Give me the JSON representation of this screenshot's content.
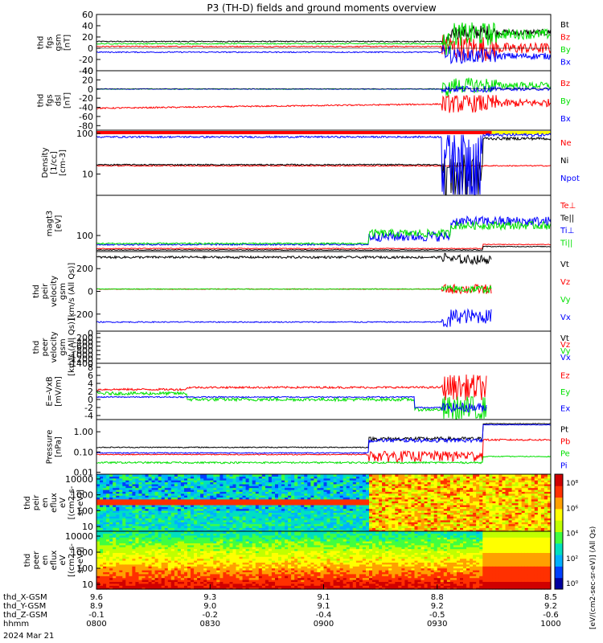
{
  "title": "P3 (TH-D) fields and ground moments overview",
  "colors": {
    "black": "#000000",
    "red": "#ff0000",
    "green": "#00e000",
    "blue": "#0000ff",
    "yellow": "#ffff00"
  },
  "bottom_axis": {
    "rows": [
      {
        "label": "thd_X-GSM",
        "values": [
          "9.6",
          "9.3",
          "9.1",
          "8.8",
          "8.5"
        ]
      },
      {
        "label": "thd_Y-GSM",
        "values": [
          "8.9",
          "9.0",
          "9.1",
          "9.2",
          "9.2"
        ]
      },
      {
        "label": "thd_Z-GSM",
        "values": [
          "-0.1",
          "-0.2",
          "-0.4",
          "-0.5",
          "-0.6"
        ]
      },
      {
        "label": "hhmm",
        "values": [
          "0800",
          "0830",
          "0900",
          "0930",
          "1000"
        ]
      }
    ],
    "date": "2024 Mar 21"
  },
  "colorbar": {
    "ticks": [
      "10⁸",
      "10⁶",
      "10⁴",
      "10²",
      "10⁰"
    ],
    "label": "[eV/(cm2-sec-sr-eV)] (All Qs)"
  },
  "chart_data": [
    {
      "type": "line",
      "ylabel": [
        "thd",
        "fgs",
        "gsm",
        "[nT]"
      ],
      "ylim": [
        -40,
        60
      ],
      "ticks": [
        "60",
        "40",
        "20",
        "0",
        "-20",
        "-40"
      ],
      "tick_values": [
        60,
        40,
        20,
        0,
        -20,
        -40
      ],
      "series": [
        {
          "name": "Bt",
          "color": "black"
        },
        {
          "name": "Bz",
          "color": "red"
        },
        {
          "name": "By",
          "color": "green"
        },
        {
          "name": "Bx",
          "color": "blue"
        }
      ]
    },
    {
      "type": "line",
      "ylabel": [
        "thd",
        "fgs",
        "dsl",
        "[nT]"
      ],
      "ylim": [
        -90,
        40
      ],
      "ticks": [
        "40",
        "20",
        "0",
        "-20",
        "-40",
        "-60",
        "-80"
      ],
      "tick_values": [
        40,
        20,
        0,
        -20,
        -40,
        -60,
        -80
      ],
      "series": [
        {
          "name": "Bz",
          "color": "red"
        },
        {
          "name": "By",
          "color": "green"
        },
        {
          "name": "Bx",
          "color": "blue"
        }
      ]
    },
    {
      "type": "line",
      "ylabel": [
        "Density",
        "[1/cc]",
        "[cm-3]"
      ],
      "scale": "log",
      "ylim": [
        3,
        120
      ],
      "ticks": [
        "100",
        "10"
      ],
      "tick_values": [
        100,
        10
      ],
      "series": [
        {
          "name": "Ne",
          "color": "red"
        },
        {
          "name": "Ni",
          "color": "black"
        },
        {
          "name": "Npot",
          "color": "blue"
        }
      ]
    },
    {
      "type": "line",
      "ylabel": [
        "magt3",
        "[eV]"
      ],
      "ylim": [
        20,
        300
      ],
      "ticks": [
        "100"
      ],
      "tick_values": [
        100
      ],
      "series": [
        {
          "name": "Te⊥",
          "color": "red"
        },
        {
          "name": "Te||",
          "color": "black"
        },
        {
          "name": "Ti⊥",
          "color": "blue"
        },
        {
          "name": "Ti||",
          "color": "green"
        }
      ]
    },
    {
      "type": "line",
      "ylabel": [
        "thd",
        "peir",
        "velocity",
        "gsm",
        "[km/s (All Qs)]"
      ],
      "ylim": [
        -350,
        350
      ],
      "ticks": [
        "200",
        "0",
        "-200"
      ],
      "tick_values": [
        200,
        0,
        -200
      ],
      "series": [
        {
          "name": "Vt",
          "color": "black"
        },
        {
          "name": "Vz",
          "color": "red"
        },
        {
          "name": "Vy",
          "color": "green"
        },
        {
          "name": "Vx",
          "color": "blue"
        }
      ]
    },
    {
      "type": "line",
      "ylabel": [
        "thd",
        "peer",
        "velocity",
        "gsm",
        "[km/s (All Qs)]"
      ],
      "ylim": [
        -1400,
        100
      ],
      "ticks": [
        "0",
        "-200",
        "-400",
        "-600",
        "-800",
        "-1000",
        "-1200",
        "-1400"
      ],
      "tick_values": [
        0,
        -200,
        -400,
        -600,
        -800,
        -1000,
        -1200,
        -1400
      ],
      "series": [
        {
          "name": "Vt",
          "color": "black"
        },
        {
          "name": "Vz",
          "color": "red"
        },
        {
          "name": "Vy",
          "color": "green"
        },
        {
          "name": "Vx",
          "color": "blue"
        }
      ]
    },
    {
      "type": "line",
      "ylabel": [
        "E=-VxB",
        "[mV/m]"
      ],
      "ylim": [
        -5,
        9
      ],
      "ticks": [
        "8",
        "6",
        "4",
        "2",
        "0",
        "-2",
        "-4"
      ],
      "tick_values": [
        8,
        6,
        4,
        2,
        0,
        -2,
        -4
      ],
      "series": [
        {
          "name": "Ez",
          "color": "red"
        },
        {
          "name": "Ey",
          "color": "green"
        },
        {
          "name": "Ex",
          "color": "blue"
        }
      ]
    },
    {
      "type": "line",
      "ylabel": [
        "Pressure",
        "[nPa]"
      ],
      "scale": "log",
      "ylim": [
        0.008,
        4
      ],
      "ticks": [
        "1.00",
        "0.10",
        "0.01"
      ],
      "tick_values": [
        1,
        0.1,
        0.01
      ],
      "series": [
        {
          "name": "Pt",
          "color": "black"
        },
        {
          "name": "Pb",
          "color": "red"
        },
        {
          "name": "Pe",
          "color": "green"
        },
        {
          "name": "Pi",
          "color": "blue"
        }
      ]
    },
    {
      "type": "heatmap",
      "ylabel": [
        "thd",
        "peir",
        "en",
        "eflux",
        "eV",
        "[(cm2-s-",
        "sr-eV)]"
      ],
      "scale": "log",
      "ylim": [
        5,
        20000
      ],
      "ticks": [
        "10000",
        "1000",
        "100",
        "10"
      ],
      "tick_values": [
        10000,
        1000,
        100,
        10
      ]
    },
    {
      "type": "heatmap",
      "ylabel": [
        "thd",
        "peer",
        "en",
        "eflux",
        "eV",
        "[(cm2-s-",
        "sr-eV)]"
      ],
      "scale": "log",
      "ylim": [
        5,
        20000
      ],
      "ticks": [
        "10000",
        "1000",
        "100",
        "10"
      ],
      "tick_values": [
        10000,
        1000,
        100,
        10
      ]
    }
  ]
}
